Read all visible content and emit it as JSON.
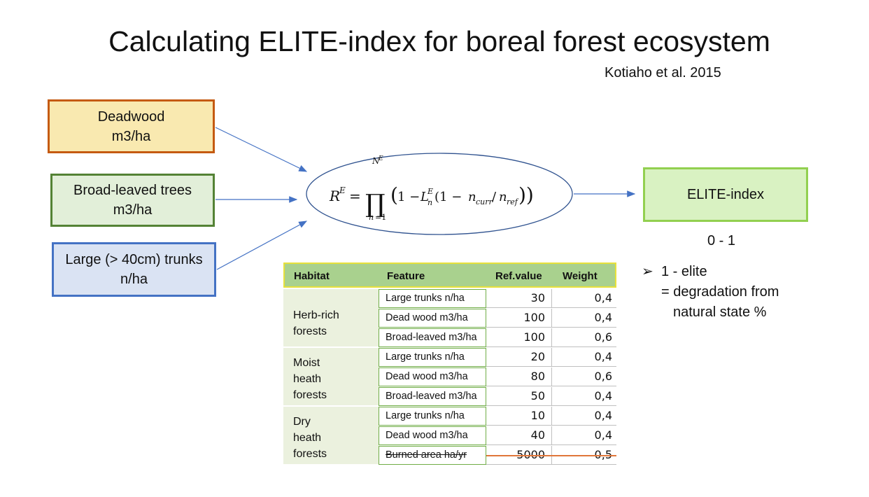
{
  "title": "Calculating ELITE-index for boreal forest ecosystem",
  "citation": "Kotiaho et al. 2015",
  "inputs": [
    {
      "label": "Deadwood\nm3/ha"
    },
    {
      "label": "Broad-leaved trees\nm3/ha"
    },
    {
      "label": "Large (> 40cm) trunks\nn/ha"
    }
  ],
  "output": {
    "label": "ELITE-index"
  },
  "range": "0 - 1",
  "bullet": {
    "marker": "➢",
    "line1": "1 - elite",
    "line2": "= degradation from",
    "line3": "natural state %"
  },
  "table": {
    "headers": [
      "Habitat",
      "Feature",
      "Ref.value",
      "Weight"
    ],
    "habitats": [
      {
        "name": "Herb-rich\nforests",
        "rows": [
          {
            "feature": "Large trunks n/ha",
            "ref": "30",
            "weight": "0,4"
          },
          {
            "feature": "Dead wood m3/ha",
            "ref": "100",
            "weight": "0,4"
          },
          {
            "feature": "Broad-leaved m3/ha",
            "ref": "100",
            "weight": "0,6"
          }
        ]
      },
      {
        "name": "Moist\nheath\nforests",
        "rows": [
          {
            "feature": "Large trunks n/ha",
            "ref": "20",
            "weight": "0,4"
          },
          {
            "feature": "Dead wood m3/ha",
            "ref": "80",
            "weight": "0,6"
          },
          {
            "feature": "Broad-leaved m3/ha",
            "ref": "50",
            "weight": "0,4"
          }
        ]
      },
      {
        "name": "Dry\nheath\nforests",
        "rows": [
          {
            "feature": "Large trunks n/ha",
            "ref": "10",
            "weight": "0,4"
          },
          {
            "feature": "Dead wood m3/ha",
            "ref": "40",
            "weight": "0,4"
          },
          {
            "feature": "Burned area ha/yr",
            "ref": "5000",
            "weight": "0,5",
            "struck": true
          }
        ]
      }
    ]
  },
  "colors": {
    "deadwood_border": "#c55a11",
    "broadleaved_border": "#548235",
    "trunks_border": "#4472c4",
    "output_border": "#92d050",
    "arrow": "#4472c4",
    "table_header": "#a9d18e"
  }
}
